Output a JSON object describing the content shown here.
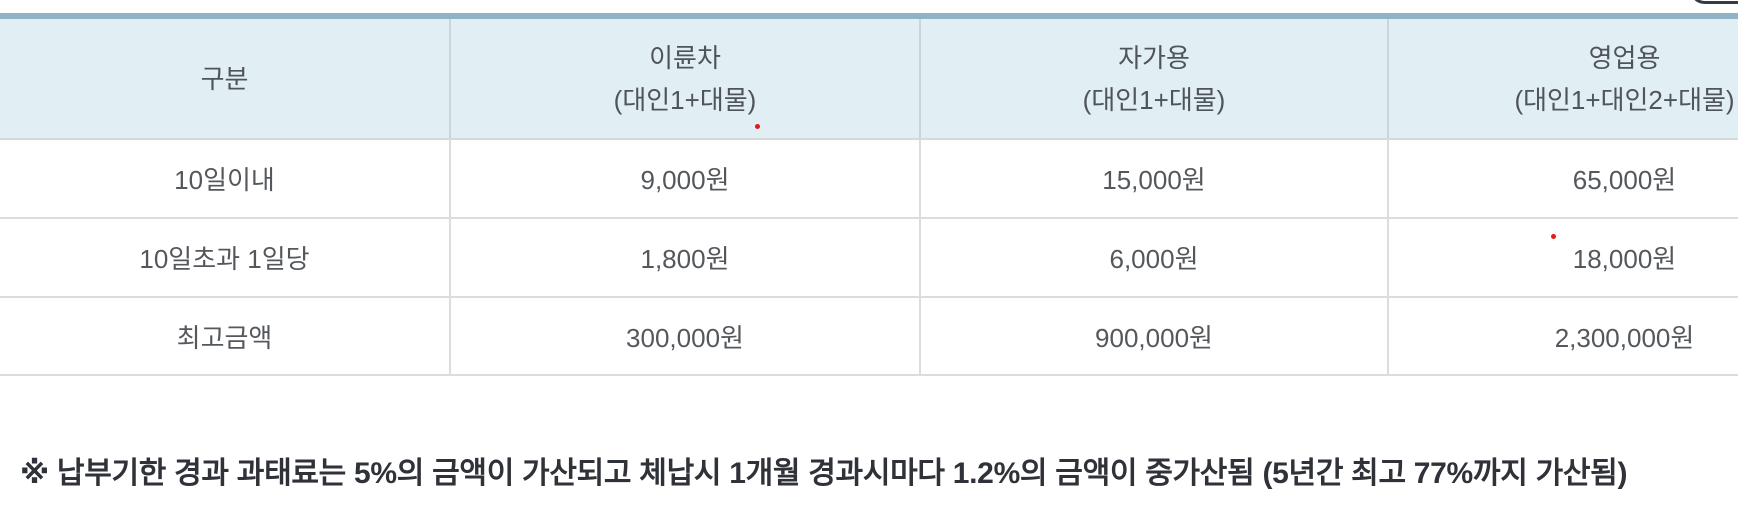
{
  "table": {
    "columns": [
      {
        "label": "구분",
        "sublabel": ""
      },
      {
        "label": "이륜차",
        "sublabel": "(대인1+대물)"
      },
      {
        "label": "자가용",
        "sublabel": "(대인1+대물)"
      },
      {
        "label": "영업용",
        "sublabel": "(대인1+대인2+대물)"
      }
    ],
    "rows": [
      {
        "label": "10일이내",
        "values": [
          "9,000원",
          "15,000원",
          "65,000원"
        ]
      },
      {
        "label": "10일초과 1일당",
        "values": [
          "1,800원",
          "6,000원",
          "18,000원"
        ]
      },
      {
        "label": "최고금액",
        "values": [
          "300,000원",
          "900,000원",
          "2,300,000원"
        ]
      }
    ]
  },
  "note": "※ 납부기한 경과 과태료는 5%의 금액이 가산되고 체납시 1개월 경과시마다 1.2%의 금액이 중가산됨 (5년간 최고 77%까지 가산됨)",
  "colors": {
    "accent_bar": "#8fb3c5",
    "header_bg": "#e1eef4",
    "row_border": "#dcdcdc",
    "text": "#54585d",
    "note_text": "#2f3238",
    "artifact_dot": "#e01b1b",
    "clipped_corner_border": "#343b47"
  }
}
